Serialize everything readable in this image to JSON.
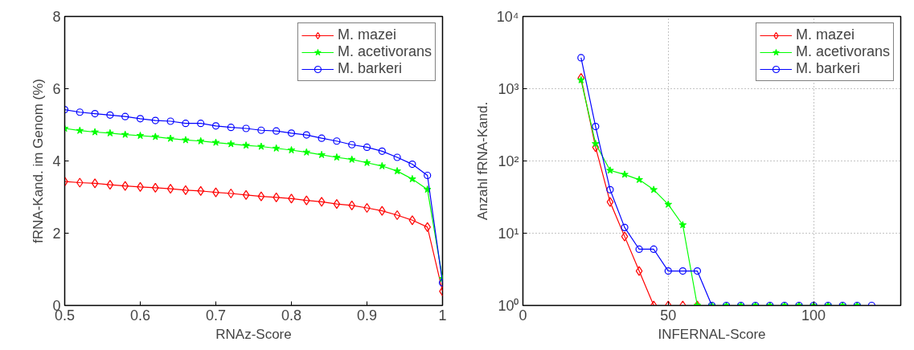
{
  "chart_data": [
    {
      "type": "line",
      "xlabel": "RNAz-Score",
      "ylabel": "fRNA-Kand. im Genom (%)",
      "x": [
        0.5,
        0.52,
        0.54,
        0.56,
        0.58,
        0.6,
        0.62,
        0.64,
        0.66,
        0.68,
        0.7,
        0.72,
        0.74,
        0.76,
        0.78,
        0.8,
        0.82,
        0.84,
        0.86,
        0.88,
        0.9,
        0.92,
        0.94,
        0.96,
        0.98,
        1
      ],
      "xlim": [
        0.5,
        1
      ],
      "xticks": [
        0.5,
        0.6,
        0.7,
        0.8,
        0.9,
        1
      ],
      "ylim": [
        0,
        8
      ],
      "yticks": [
        0,
        2,
        4,
        6,
        8
      ],
      "grid": false,
      "legend": "top right",
      "line_style": "solid",
      "series": [
        {
          "name": "M. mazei",
          "color": "#ff0000",
          "marker": "diamond",
          "values": [
            3.43,
            3.4,
            3.38,
            3.34,
            3.31,
            3.28,
            3.26,
            3.23,
            3.19,
            3.17,
            3.13,
            3.1,
            3.06,
            3.02,
            2.99,
            2.96,
            2.91,
            2.87,
            2.81,
            2.77,
            2.7,
            2.62,
            2.5,
            2.36,
            2.17,
            0.39
          ]
        },
        {
          "name": "M. acetivorans",
          "color": "#00ff00",
          "marker": "star",
          "values": [
            4.9,
            4.84,
            4.8,
            4.77,
            4.73,
            4.7,
            4.67,
            4.62,
            4.58,
            4.55,
            4.51,
            4.47,
            4.43,
            4.4,
            4.35,
            4.3,
            4.24,
            4.17,
            4.1,
            4.04,
            3.95,
            3.86,
            3.72,
            3.5,
            3.21,
            0.74
          ]
        },
        {
          "name": "M. barkeri",
          "color": "#0000ff",
          "marker": "circle",
          "values": [
            5.42,
            5.35,
            5.31,
            5.27,
            5.23,
            5.17,
            5.12,
            5.1,
            5.04,
            5.04,
            4.97,
            4.93,
            4.9,
            4.85,
            4.83,
            4.77,
            4.72,
            4.63,
            4.55,
            4.45,
            4.38,
            4.27,
            4.1,
            3.91,
            3.6,
            0.63
          ]
        }
      ]
    },
    {
      "type": "line",
      "xlabel": "INFERNAL-Score",
      "ylabel": "Anzahl fRNA-Kand.",
      "log": "y",
      "xlim": [
        0,
        130
      ],
      "xticks": [
        0,
        50,
        100
      ],
      "ylim": [
        1,
        10000
      ],
      "yticks": [
        {
          "value": 1,
          "label": "10⁰"
        },
        {
          "value": 10,
          "label": "10¹"
        },
        {
          "value": 100,
          "label": "10²"
        },
        {
          "value": 1000,
          "label": "10³"
        },
        {
          "value": 10000,
          "label": "10⁴"
        }
      ],
      "grid": true,
      "legend": "top right",
      "line_style": "solid",
      "series": [
        {
          "name": "M. mazei",
          "color": "#ff0000",
          "marker": "diamond",
          "x": [
            20,
            25,
            30,
            35,
            40,
            45,
            50,
            55,
            60
          ],
          "values": [
            1410,
            155,
            27,
            9,
            3,
            1,
            1,
            1,
            1
          ]
        },
        {
          "name": "M. acetivorans",
          "color": "#00ff00",
          "marker": "star",
          "x": [
            20,
            25,
            30,
            35,
            40,
            45,
            50,
            55,
            60,
            65,
            70,
            75,
            80,
            85,
            90,
            95,
            100,
            105,
            110,
            115
          ],
          "values": [
            1320,
            173,
            74,
            65,
            55,
            40,
            25,
            13,
            1,
            1,
            1,
            1,
            1,
            1,
            1,
            1,
            1,
            1,
            1,
            1
          ]
        },
        {
          "name": "M. barkeri",
          "color": "#0000ff",
          "marker": "circle",
          "x": [
            20,
            25,
            30,
            35,
            40,
            45,
            50,
            55,
            60,
            65,
            70,
            75,
            80,
            85,
            90,
            95,
            100,
            105,
            110,
            115,
            120
          ],
          "values": [
            2680,
            300,
            40,
            12,
            6,
            6,
            3,
            3,
            3,
            1,
            1,
            1,
            1,
            1,
            1,
            1,
            1,
            1,
            1,
            1,
            1
          ]
        }
      ]
    }
  ]
}
